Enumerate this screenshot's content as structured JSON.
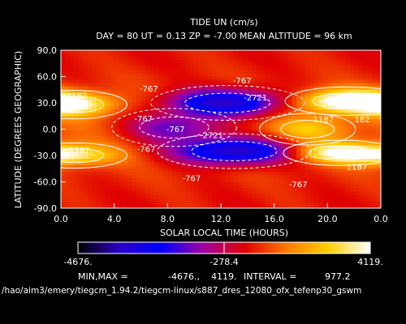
{
  "chart_data": {
    "type": "heatmap",
    "title": "TIDE UN (cm/s)",
    "subtitle": "DAY =  80  UT =  0.13  ZP =  -7.00  MEAN ALTITUDE =  96 km",
    "xlabel": "SOLAR LOCAL TIME (HOURS)",
    "ylabel": "LATITUDE (DEGREES GEOGRAPHIC)",
    "x_ticks": [
      "0.0",
      "4.0",
      "8.0",
      "12.0",
      "16.0",
      "20.0",
      "0.0"
    ],
    "y_ticks": [
      "90.0",
      "60.0",
      "30.0",
      "0.0",
      "-30.0",
      "-60.0",
      "-90.0"
    ],
    "xlim": [
      0,
      24
    ],
    "ylim": [
      -90,
      90
    ],
    "grid": false,
    "colorbar": {
      "min_label": "-4676.",
      "mid_label": "-278.4",
      "max_label": "4119.",
      "min": -4676,
      "max": 4119,
      "stops": [
        "#000000",
        "#2a00c8",
        "#0000ff",
        "#a000a0",
        "#e00000",
        "#ff7a00",
        "#ffd000",
        "#ffffff"
      ]
    },
    "summary": {
      "minmax_label": "MIN,MAX =",
      "min_value": "-4676.,",
      "max_value": "4119.",
      "interval_label": "INTERVAL =",
      "interval_value": "977.2"
    },
    "contour_labels": [
      {
        "text": "-767",
        "x": 13.6,
        "y": 52
      },
      {
        "text": "-2721",
        "x": 14.6,
        "y": 33
      },
      {
        "text": "1187",
        "x": 1.2,
        "y": 35
      },
      {
        "text": "-767",
        "x": 6.6,
        "y": 43
      },
      {
        "text": "-767",
        "x": 6.2,
        "y": 9
      },
      {
        "text": "1187",
        "x": 19.7,
        "y": 8
      },
      {
        "text": "182",
        "x": 22.6,
        "y": 8
      },
      {
        "text": "-767",
        "x": 8.6,
        "y": -3
      },
      {
        "text": "-2721",
        "x": 11.3,
        "y": -10
      },
      {
        "text": "-767",
        "x": 6.4,
        "y": -26
      },
      {
        "text": "1187",
        "x": 1.4,
        "y": -27
      },
      {
        "text": "-767",
        "x": 9.8,
        "y": -59
      },
      {
        "text": "1187",
        "x": 22.2,
        "y": -46
      },
      {
        "text": "-767",
        "x": 17.8,
        "y": -66
      }
    ],
    "field_features": [
      {
        "sign": "neg",
        "x": 12.5,
        "y": 30,
        "sx": 3.2,
        "sy": 11,
        "amp": -4300
      },
      {
        "sign": "neg",
        "x": 13.0,
        "y": -25,
        "sx": 3.2,
        "sy": 11,
        "amp": -4600
      },
      {
        "sign": "neg",
        "x": 8.5,
        "y": 2,
        "sx": 2.6,
        "sy": 12,
        "amp": -2600
      },
      {
        "sign": "pos",
        "x": 21.5,
        "y": 32,
        "sx": 2.6,
        "sy": 9,
        "amp": 4100
      },
      {
        "sign": "pos",
        "x": 21.0,
        "y": -27,
        "sx": 2.4,
        "sy": 8,
        "amp": 3300
      },
      {
        "sign": "pos",
        "x": 1.0,
        "y": 28,
        "sx": 2.2,
        "sy": 9,
        "amp": 2500
      },
      {
        "sign": "pos",
        "x": 1.0,
        "y": -30,
        "sx": 2.2,
        "sy": 8,
        "amp": 2300
      },
      {
        "sign": "pos",
        "x": 18.5,
        "y": 0,
        "sx": 2.0,
        "sy": 10,
        "amp": 1500
      }
    ]
  },
  "footer_path": "/hao/aim3/emery/tiegcm_1.94.2/tiegcm-linux/s887_dres_12080_ofx_tefenp30_gswm"
}
